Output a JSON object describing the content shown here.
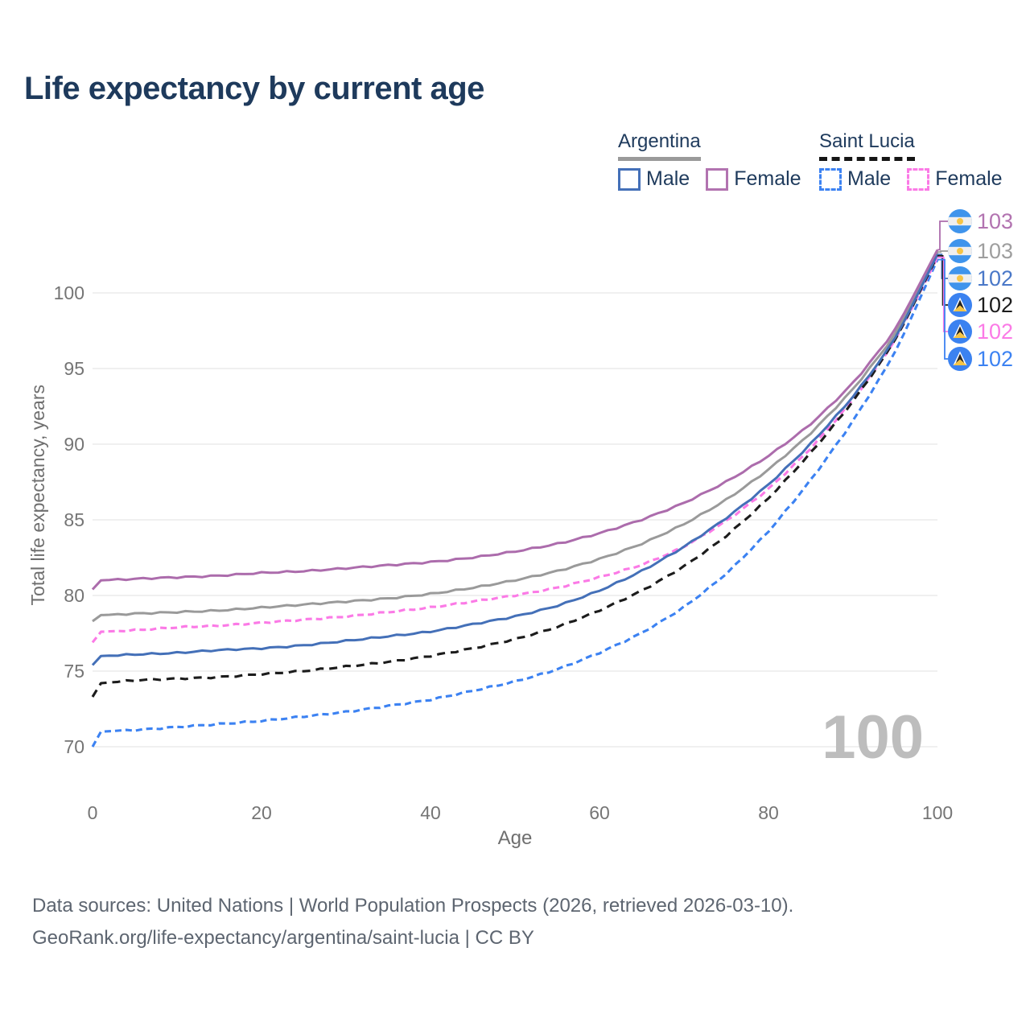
{
  "title": "Life expectancy by current age",
  "legend": {
    "groups": [
      {
        "label": "Argentina",
        "underline_style": "solid",
        "underline_color": "#9a9a9a",
        "items": [
          {
            "label": "Male",
            "color": "#4470b8",
            "dashed": false
          },
          {
            "label": "Female",
            "color": "#b273b0",
            "dashed": false
          }
        ]
      },
      {
        "label": "Saint Lucia",
        "underline_style": "dashed",
        "underline_color": "#151515",
        "items": [
          {
            "label": "Male",
            "color": "#3c82f2",
            "dashed": true
          },
          {
            "label": "Female",
            "color": "#fb7ae6",
            "dashed": true
          }
        ]
      }
    ]
  },
  "axes": {
    "x": {
      "title": "Age",
      "ticks": [
        0,
        20,
        40,
        60,
        80,
        100
      ],
      "range": [
        0,
        100
      ]
    },
    "y": {
      "title": "Total life expectancy, years",
      "ticks": [
        70,
        75,
        80,
        85,
        90,
        95,
        100
      ],
      "range": [
        68.5,
        103.5
      ]
    }
  },
  "watermark": {
    "text": "100"
  },
  "footer": {
    "line1": "Data sources: United Nations | World Population Prospects (2026, retrieved 2026-03-10).",
    "line2": "GeoRank.org/life-expectancy/argentina/saint-lucia | CC BY"
  },
  "chart_data": {
    "type": "line",
    "xlabel": "Age",
    "ylabel": "Total life expectancy, years",
    "x": [
      0,
      1,
      5,
      10,
      15,
      20,
      25,
      30,
      35,
      40,
      45,
      50,
      55,
      60,
      65,
      70,
      75,
      80,
      85,
      90,
      95,
      100
    ],
    "series": [
      {
        "name": "Saint Lucia Male",
        "country": "saint-lucia",
        "sex": "male",
        "color": "#3c82f2",
        "dashed": true,
        "values": [
          70.0,
          71.0,
          71.1,
          71.3,
          71.5,
          71.7,
          72.0,
          72.3,
          72.7,
          73.1,
          73.7,
          74.3,
          75.1,
          76.2,
          77.5,
          79.2,
          81.4,
          84.2,
          87.6,
          91.5,
          96.0,
          102.2
        ],
        "end_label": "102",
        "end_label_color": "#3c82f2"
      },
      {
        "name": "Saint Lucia Female",
        "country": "saint-lucia",
        "sex": "female",
        "color": "#fb7ae6",
        "dashed": true,
        "values": [
          76.9,
          77.6,
          77.7,
          77.9,
          78.0,
          78.2,
          78.4,
          78.6,
          78.9,
          79.2,
          79.6,
          80.0,
          80.5,
          81.2,
          82.0,
          83.2,
          84.9,
          87.0,
          89.7,
          92.9,
          96.8,
          102.35
        ],
        "end_label": "102",
        "end_label_color": "#fb7ae6"
      },
      {
        "name": "Saint Lucia Both sexes",
        "country": "saint-lucia",
        "sex": "both",
        "color": "#1c1c1c",
        "dashed": true,
        "values": [
          73.3,
          74.2,
          74.4,
          74.5,
          74.6,
          74.8,
          75.0,
          75.3,
          75.6,
          76.0,
          76.5,
          77.1,
          77.9,
          79.0,
          80.3,
          81.9,
          83.9,
          86.4,
          89.4,
          92.8,
          96.8,
          102.45
        ],
        "end_label": "102",
        "end_label_color": "#1c1c1c"
      },
      {
        "name": "Argentina Both sexes",
        "country": "argentina",
        "sex": "both",
        "color": "#9a9a9a",
        "dashed": false,
        "values": [
          78.3,
          78.7,
          78.8,
          78.9,
          79.0,
          79.2,
          79.4,
          79.6,
          79.8,
          80.1,
          80.5,
          81.0,
          81.6,
          82.4,
          83.4,
          84.7,
          86.3,
          88.3,
          90.7,
          93.6,
          97.2,
          102.7
        ],
        "end_label": "103",
        "end_label_color": "#9e9e9e"
      },
      {
        "name": "Argentina Male",
        "country": "argentina",
        "sex": "male",
        "color": "#4470b8",
        "dashed": false,
        "values": [
          75.4,
          76.0,
          76.1,
          76.2,
          76.4,
          76.5,
          76.7,
          77.0,
          77.3,
          77.6,
          78.1,
          78.6,
          79.3,
          80.3,
          81.6,
          83.2,
          85.1,
          87.3,
          90.0,
          93.1,
          96.9,
          102.55
        ],
        "end_label": "102",
        "end_label_color": "#4a78c8"
      },
      {
        "name": "Argentina Female",
        "country": "argentina",
        "sex": "female",
        "color": "#ac6cac",
        "dashed": false,
        "values": [
          80.4,
          81.0,
          81.1,
          81.2,
          81.3,
          81.5,
          81.6,
          81.8,
          82.0,
          82.2,
          82.5,
          82.9,
          83.4,
          84.1,
          85.0,
          86.1,
          87.5,
          89.2,
          91.3,
          94.0,
          97.5,
          102.85
        ],
        "end_label": "103",
        "end_label_color": "#b273b0"
      }
    ],
    "end_label_rows": [
      {
        "series": "Argentina Female",
        "y": 275
      },
      {
        "series": "Argentina Both sexes",
        "y": 312
      },
      {
        "series": "Argentina Male",
        "y": 346
      },
      {
        "series": "Saint Lucia Both sexes",
        "y": 379
      },
      {
        "series": "Saint Lucia Female",
        "y": 412
      },
      {
        "series": "Saint Lucia Male",
        "y": 446
      }
    ]
  }
}
